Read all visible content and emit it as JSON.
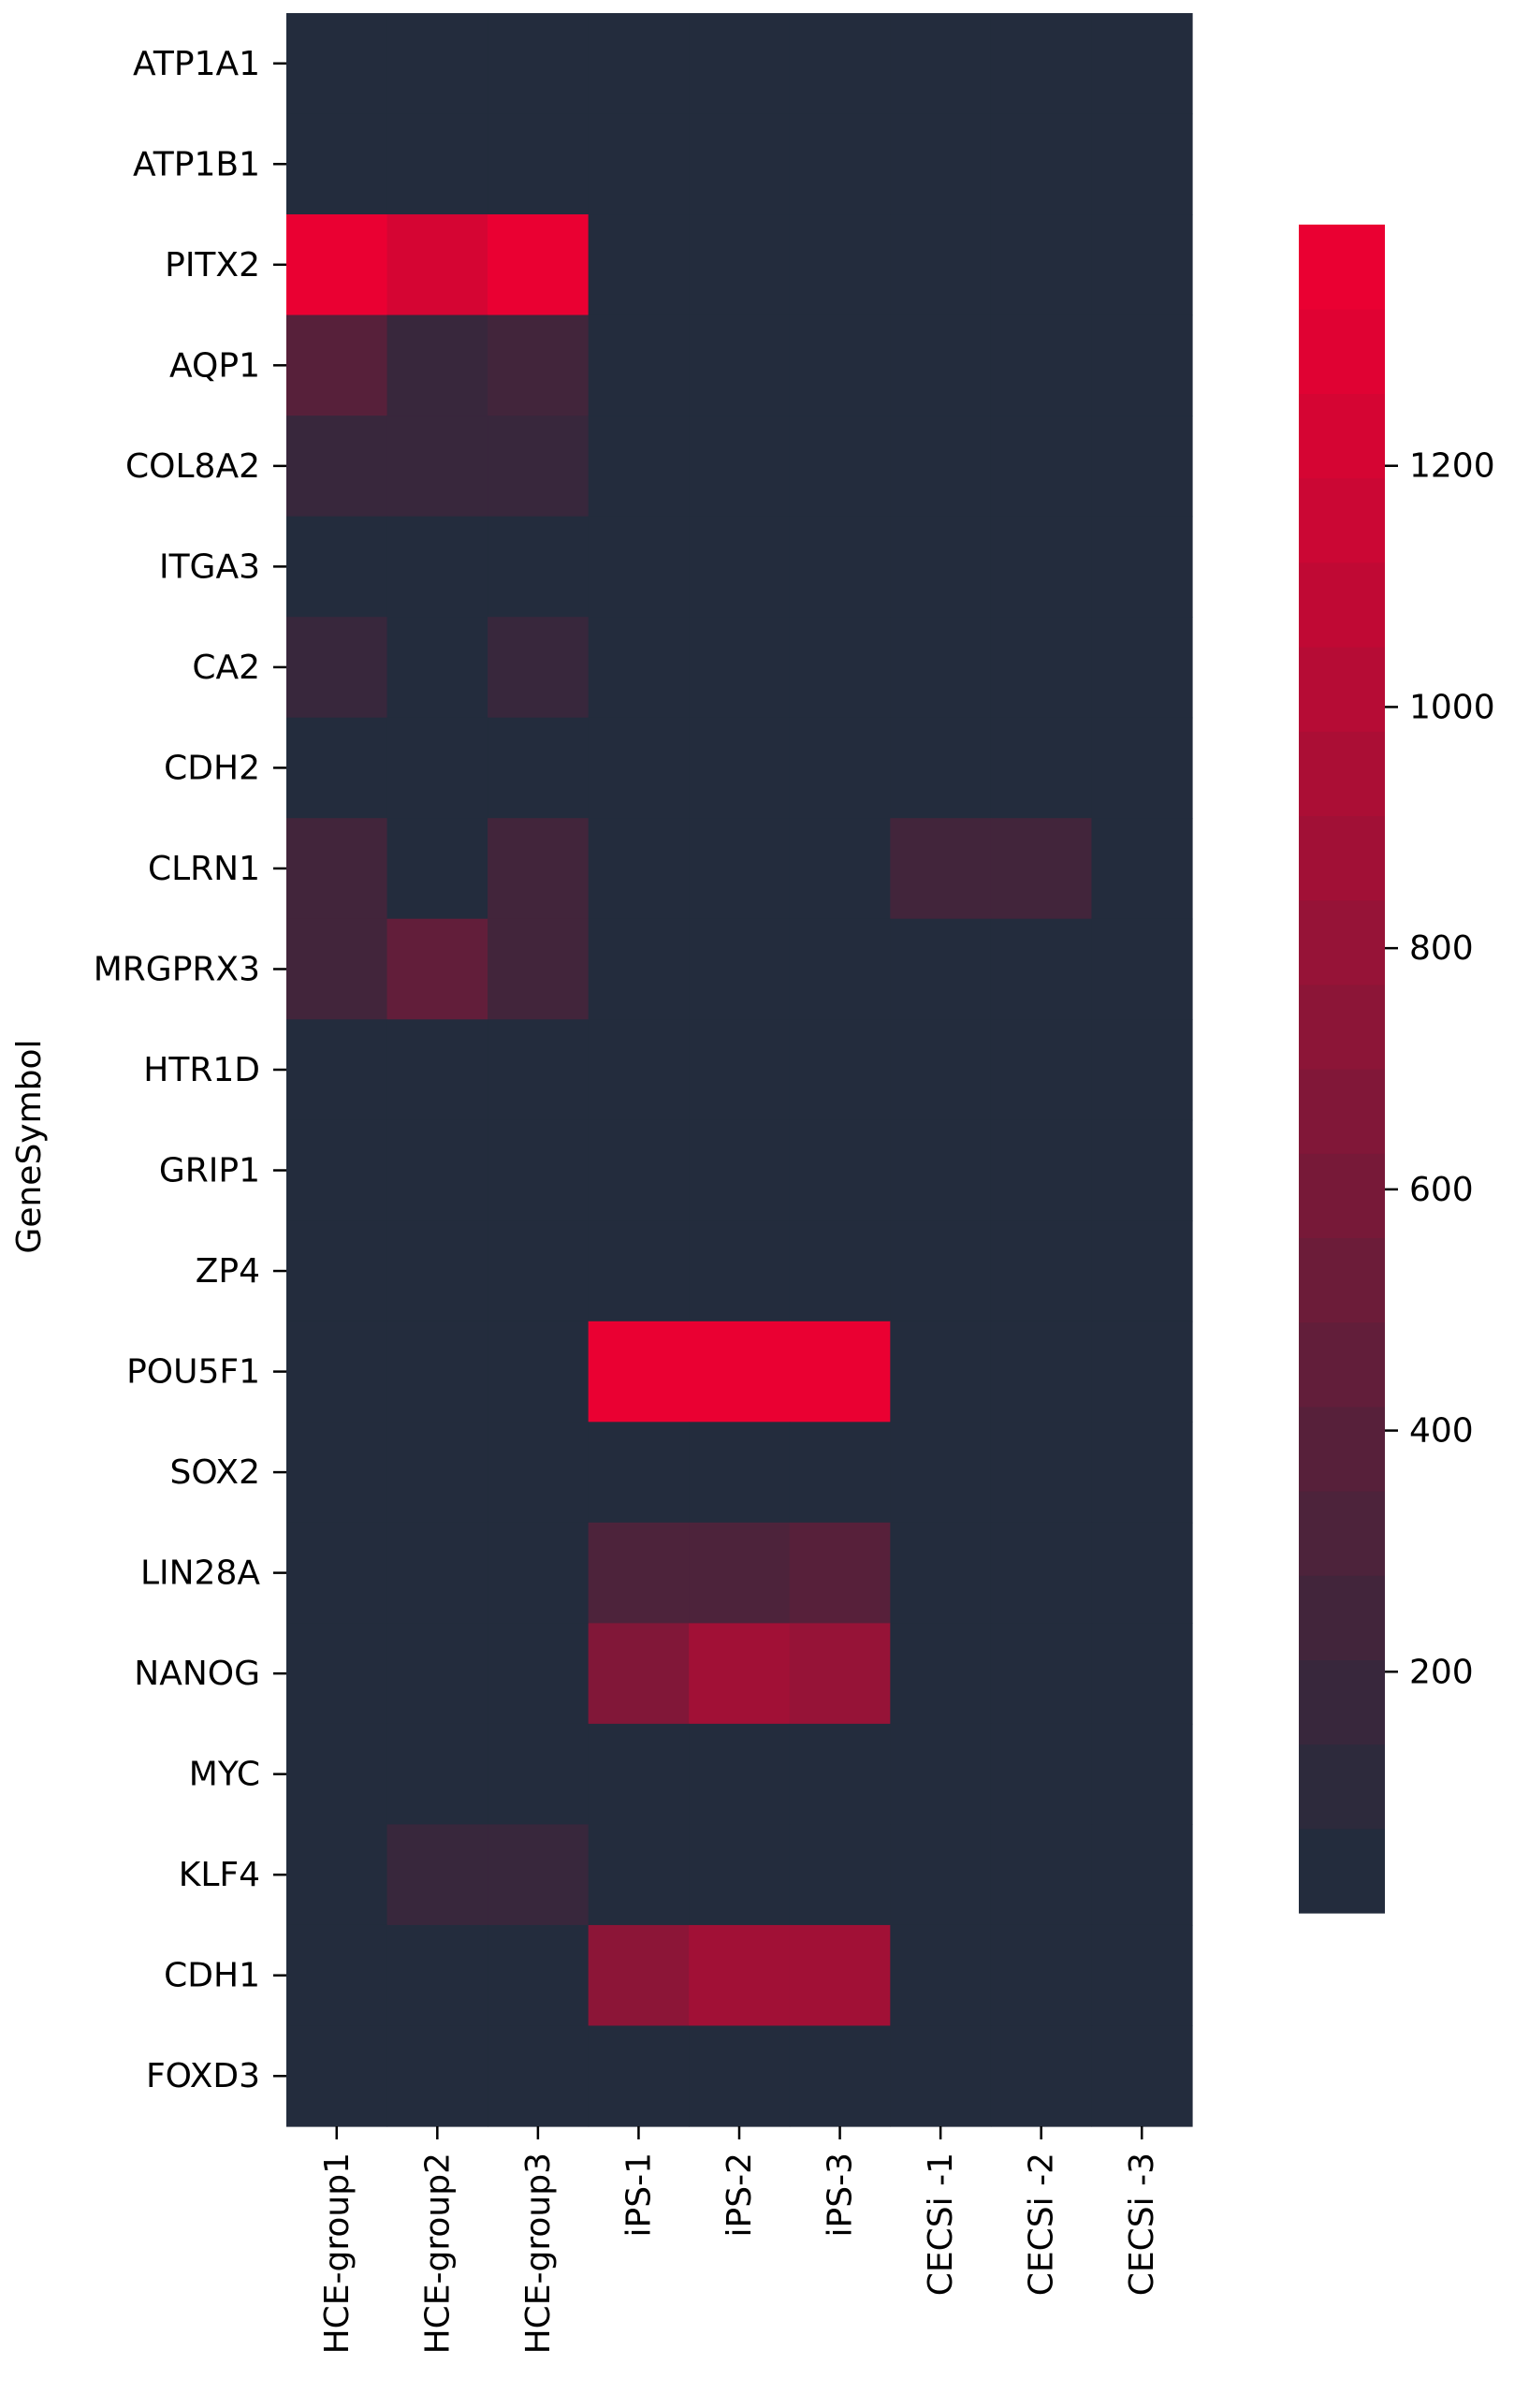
{
  "chart_data": {
    "type": "heatmap",
    "title": "",
    "xlabel": "",
    "ylabel": "GeneSymbol",
    "columns": [
      "HCE-group1",
      "HCE-group2",
      "HCE-group3",
      "iPS-1",
      "iPS-2",
      "iPS-3",
      "CECSi -1",
      "CECSi -2",
      "CECSi -3"
    ],
    "rows": [
      "ATP1A1",
      "ATP1B1",
      "PITX2",
      "AQP1",
      "COL8A2",
      "ITGA3",
      "CA2",
      "CDH2",
      "CLRN1",
      "MRGPRX3",
      "HTR1D",
      "GRIP1",
      "ZP4",
      "POU5F1",
      "SOX2",
      "LIN28A",
      "NANOG",
      "MYC",
      "KLF4",
      "CDH1",
      "FOXD3"
    ],
    "values": [
      [
        20,
        60,
        60,
        5,
        5,
        5,
        5,
        5,
        5
      ],
      [
        5,
        5,
        5,
        5,
        5,
        5,
        5,
        5,
        5
      ],
      [
        1350,
        1250,
        1350,
        5,
        5,
        5,
        60,
        5,
        60
      ],
      [
        380,
        200,
        260,
        5,
        5,
        5,
        60,
        5,
        60
      ],
      [
        160,
        160,
        160,
        5,
        5,
        5,
        5,
        5,
        5
      ],
      [
        5,
        5,
        5,
        5,
        5,
        5,
        5,
        5,
        5
      ],
      [
        200,
        40,
        200,
        5,
        5,
        5,
        5,
        5,
        5
      ],
      [
        5,
        5,
        5,
        5,
        5,
        5,
        5,
        5,
        5
      ],
      [
        260,
        40,
        250,
        5,
        5,
        5,
        220,
        220,
        60
      ],
      [
        260,
        420,
        220,
        5,
        5,
        5,
        5,
        5,
        5
      ],
      [
        5,
        5,
        5,
        5,
        5,
        5,
        5,
        5,
        5
      ],
      [
        5,
        5,
        5,
        5,
        5,
        5,
        5,
        5,
        5
      ],
      [
        50,
        50,
        50,
        5,
        5,
        5,
        5,
        5,
        5
      ],
      [
        5,
        5,
        5,
        1400,
        1400,
        1400,
        5,
        5,
        5
      ],
      [
        5,
        5,
        5,
        5,
        5,
        5,
        5,
        5,
        5
      ],
      [
        5,
        5,
        5,
        340,
        340,
        380,
        5,
        5,
        5
      ],
      [
        5,
        5,
        5,
        650,
        900,
        820,
        5,
        5,
        5
      ],
      [
        5,
        5,
        5,
        5,
        5,
        5,
        5,
        5,
        5
      ],
      [
        40,
        200,
        200,
        5,
        5,
        5,
        5,
        5,
        5
      ],
      [
        5,
        5,
        5,
        750,
        900,
        850,
        5,
        5,
        5
      ],
      [
        5,
        5,
        5,
        50,
        50,
        50,
        5,
        5,
        5
      ]
    ],
    "vmin": 0,
    "vmax": 1400,
    "colorbar_ticks": [
      200,
      400,
      600,
      800,
      1000,
      1200
    ],
    "colormap": [
      "#232c3d",
      "#ea0032"
    ],
    "colorbar_levels": 20,
    "grid": false,
    "legend": "colorbar-right"
  }
}
